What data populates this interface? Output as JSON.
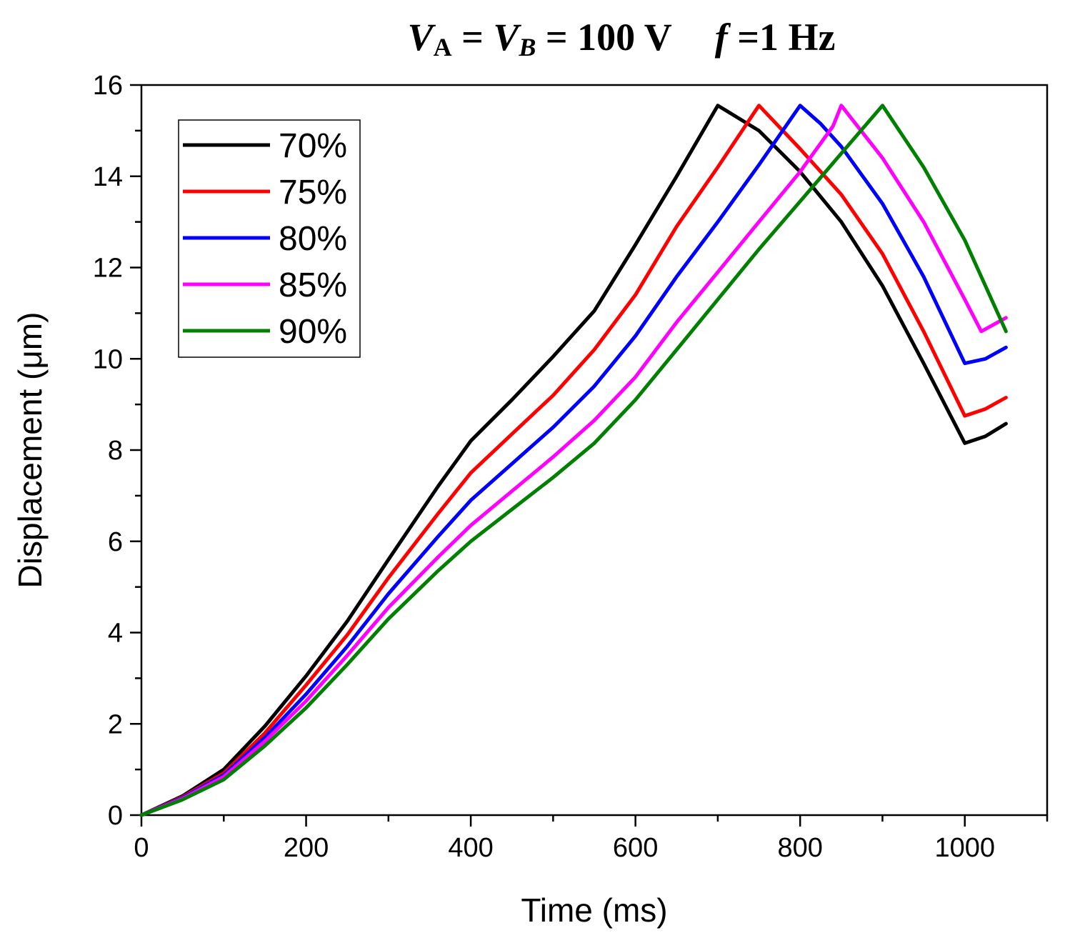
{
  "chart_data": {
    "type": "line",
    "title": {
      "v": "V",
      "sub_a": "A",
      "eq1": " = ",
      "sub_b": "B",
      "eq2": " = 100 V",
      "f": "f",
      "freq": " =1 Hz"
    },
    "xlabel": "Time (ms)",
    "ylabel": "Displacement (μm)",
    "xlim": [
      0,
      1100
    ],
    "ylim": [
      0,
      16
    ],
    "xticks": [
      0,
      200,
      400,
      600,
      800,
      1000
    ],
    "yticks": [
      0,
      2,
      4,
      6,
      8,
      10,
      12,
      14,
      16
    ],
    "legend_position": "top-left",
    "series": [
      {
        "name": "70%",
        "color": "#000000",
        "points": [
          [
            0,
            0
          ],
          [
            50,
            0.42
          ],
          [
            100,
            1.0
          ],
          [
            150,
            1.95
          ],
          [
            200,
            3.05
          ],
          [
            250,
            4.25
          ],
          [
            300,
            5.6
          ],
          [
            360,
            7.2
          ],
          [
            400,
            8.2
          ],
          [
            450,
            9.1
          ],
          [
            500,
            10.05
          ],
          [
            550,
            11.05
          ],
          [
            600,
            12.5
          ],
          [
            650,
            14.0
          ],
          [
            700,
            15.55
          ],
          [
            750,
            15.0
          ],
          [
            800,
            14.1
          ],
          [
            850,
            13.0
          ],
          [
            900,
            11.6
          ],
          [
            950,
            9.9
          ],
          [
            1000,
            8.15
          ],
          [
            1025,
            8.3
          ],
          [
            1050,
            8.58
          ]
        ]
      },
      {
        "name": "75%",
        "color": "#ff0000",
        "points": [
          [
            0,
            0
          ],
          [
            50,
            0.4
          ],
          [
            100,
            0.92
          ],
          [
            150,
            1.8
          ],
          [
            200,
            2.85
          ],
          [
            250,
            3.95
          ],
          [
            300,
            5.2
          ],
          [
            360,
            6.6
          ],
          [
            400,
            7.5
          ],
          [
            450,
            8.35
          ],
          [
            500,
            9.2
          ],
          [
            550,
            10.2
          ],
          [
            600,
            11.4
          ],
          [
            650,
            12.9
          ],
          [
            700,
            14.2
          ],
          [
            750,
            15.55
          ],
          [
            800,
            14.6
          ],
          [
            850,
            13.6
          ],
          [
            900,
            12.3
          ],
          [
            950,
            10.6
          ],
          [
            1000,
            8.75
          ],
          [
            1025,
            8.9
          ],
          [
            1050,
            9.15
          ]
        ]
      },
      {
        "name": "80%",
        "color": "#0000ff",
        "points": [
          [
            0,
            0
          ],
          [
            50,
            0.38
          ],
          [
            100,
            0.88
          ],
          [
            150,
            1.7
          ],
          [
            200,
            2.65
          ],
          [
            250,
            3.7
          ],
          [
            300,
            4.85
          ],
          [
            360,
            6.1
          ],
          [
            400,
            6.9
          ],
          [
            450,
            7.7
          ],
          [
            500,
            8.5
          ],
          [
            550,
            9.4
          ],
          [
            600,
            10.5
          ],
          [
            650,
            11.8
          ],
          [
            700,
            13.0
          ],
          [
            750,
            14.25
          ],
          [
            800,
            15.55
          ],
          [
            825,
            15.15
          ],
          [
            850,
            14.65
          ],
          [
            900,
            13.4
          ],
          [
            950,
            11.8
          ],
          [
            1000,
            9.9
          ],
          [
            1025,
            10.0
          ],
          [
            1050,
            10.25
          ]
        ]
      },
      {
        "name": "85%",
        "color": "#ff00ff",
        "points": [
          [
            0,
            0
          ],
          [
            50,
            0.36
          ],
          [
            100,
            0.84
          ],
          [
            150,
            1.62
          ],
          [
            200,
            2.5
          ],
          [
            250,
            3.5
          ],
          [
            300,
            4.55
          ],
          [
            360,
            5.65
          ],
          [
            400,
            6.35
          ],
          [
            450,
            7.1
          ],
          [
            500,
            7.85
          ],
          [
            550,
            8.65
          ],
          [
            600,
            9.6
          ],
          [
            650,
            10.8
          ],
          [
            700,
            11.9
          ],
          [
            750,
            13.0
          ],
          [
            800,
            14.1
          ],
          [
            840,
            15.1
          ],
          [
            850,
            15.55
          ],
          [
            900,
            14.4
          ],
          [
            950,
            13.0
          ],
          [
            1000,
            11.3
          ],
          [
            1020,
            10.6
          ],
          [
            1050,
            10.9
          ]
        ]
      },
      {
        "name": "90%",
        "color": "#008000",
        "points": [
          [
            0,
            0
          ],
          [
            50,
            0.34
          ],
          [
            100,
            0.78
          ],
          [
            150,
            1.52
          ],
          [
            200,
            2.35
          ],
          [
            250,
            3.3
          ],
          [
            300,
            4.3
          ],
          [
            360,
            5.35
          ],
          [
            400,
            6.0
          ],
          [
            450,
            6.7
          ],
          [
            500,
            7.4
          ],
          [
            550,
            8.15
          ],
          [
            600,
            9.1
          ],
          [
            650,
            10.2
          ],
          [
            700,
            11.3
          ],
          [
            750,
            12.4
          ],
          [
            800,
            13.45
          ],
          [
            850,
            14.5
          ],
          [
            900,
            15.55
          ],
          [
            950,
            14.2
          ],
          [
            1000,
            12.6
          ],
          [
            1050,
            10.6
          ]
        ]
      }
    ]
  }
}
